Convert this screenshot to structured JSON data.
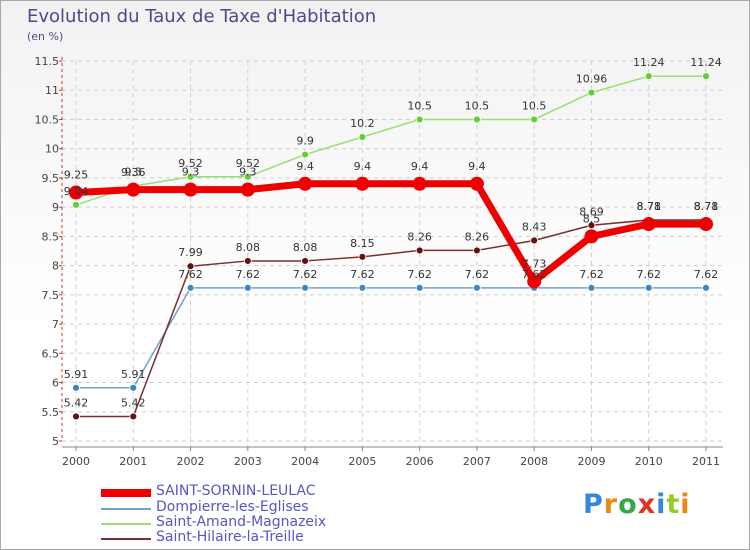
{
  "title": "Evolution du Taux de Taxe d'Habitation",
  "unit_label": "(en %)",
  "logo_text": "Proxiti",
  "chart_data": {
    "type": "line",
    "title": "Evolution du Taux de Taxe d'Habitation",
    "ylabel": "(en %)",
    "xlabel": "",
    "ylim": [
      5,
      11.5
    ],
    "yticks": [
      5,
      5.5,
      6,
      6.5,
      7,
      7.5,
      8,
      8.5,
      9,
      9.5,
      10,
      10.5,
      11,
      11.5
    ],
    "categories": [
      "2000",
      "2001",
      "2002",
      "2003",
      "2004",
      "2005",
      "2006",
      "2007",
      "2008",
      "2009",
      "2010",
      "2011"
    ],
    "series": [
      {
        "name": "SAINT-SORNIN-LEULAC",
        "color": "#ee0000",
        "marker": "#ee0000",
        "values": [
          9.25,
          9.3,
          9.3,
          9.3,
          9.4,
          9.4,
          9.4,
          9.4,
          7.73,
          8.5,
          8.71,
          8.71
        ],
        "labels": [
          "9.25",
          "9.3",
          "9.3",
          "9.3",
          "9.4",
          "9.4",
          "9.4",
          "9.4",
          "7.73",
          "8.5",
          "8.71",
          "8.71"
        ]
      },
      {
        "name": "Dompierre-les-Eglises",
        "color": "#6fa0d0",
        "marker": "#3a86c8",
        "values": [
          5.91,
          5.91,
          7.62,
          7.62,
          7.62,
          7.62,
          7.62,
          7.62,
          7.62,
          7.62,
          7.62,
          7.62
        ],
        "labels": [
          "5.91",
          "5.91",
          "7.62",
          "7.62",
          "7.62",
          "7.62",
          "7.62",
          "7.62",
          "7.62",
          "7.62",
          "7.62",
          "7.62"
        ]
      },
      {
        "name": "Saint-Amand-Magnazeix",
        "color": "#99dd77",
        "marker": "#66cc33",
        "values": [
          9.04,
          9.36,
          9.52,
          9.52,
          9.9,
          10.2,
          10.5,
          10.5,
          10.5,
          10.96,
          11.24,
          11.24
        ],
        "labels": [
          "9.04",
          "9.36",
          "9.52",
          "9.52",
          "9.9",
          "10.2",
          "10.5",
          "10.5",
          "10.5",
          "10.96",
          "11.24",
          "11.24"
        ]
      },
      {
        "name": "Saint-Hilaire-la-Treille",
        "color": "#7a3030",
        "marker": "#661111",
        "values": [
          5.42,
          5.42,
          7.99,
          8.08,
          8.08,
          8.15,
          8.26,
          8.26,
          8.43,
          8.69,
          8.78,
          8.78
        ],
        "labels": [
          "5.42",
          "5.42",
          "7.99",
          "8.08",
          "8.08",
          "8.15",
          "8.26",
          "8.26",
          "8.43",
          "8.69",
          "8.78",
          "8.78"
        ]
      }
    ],
    "legend_position": "bottom-left"
  }
}
